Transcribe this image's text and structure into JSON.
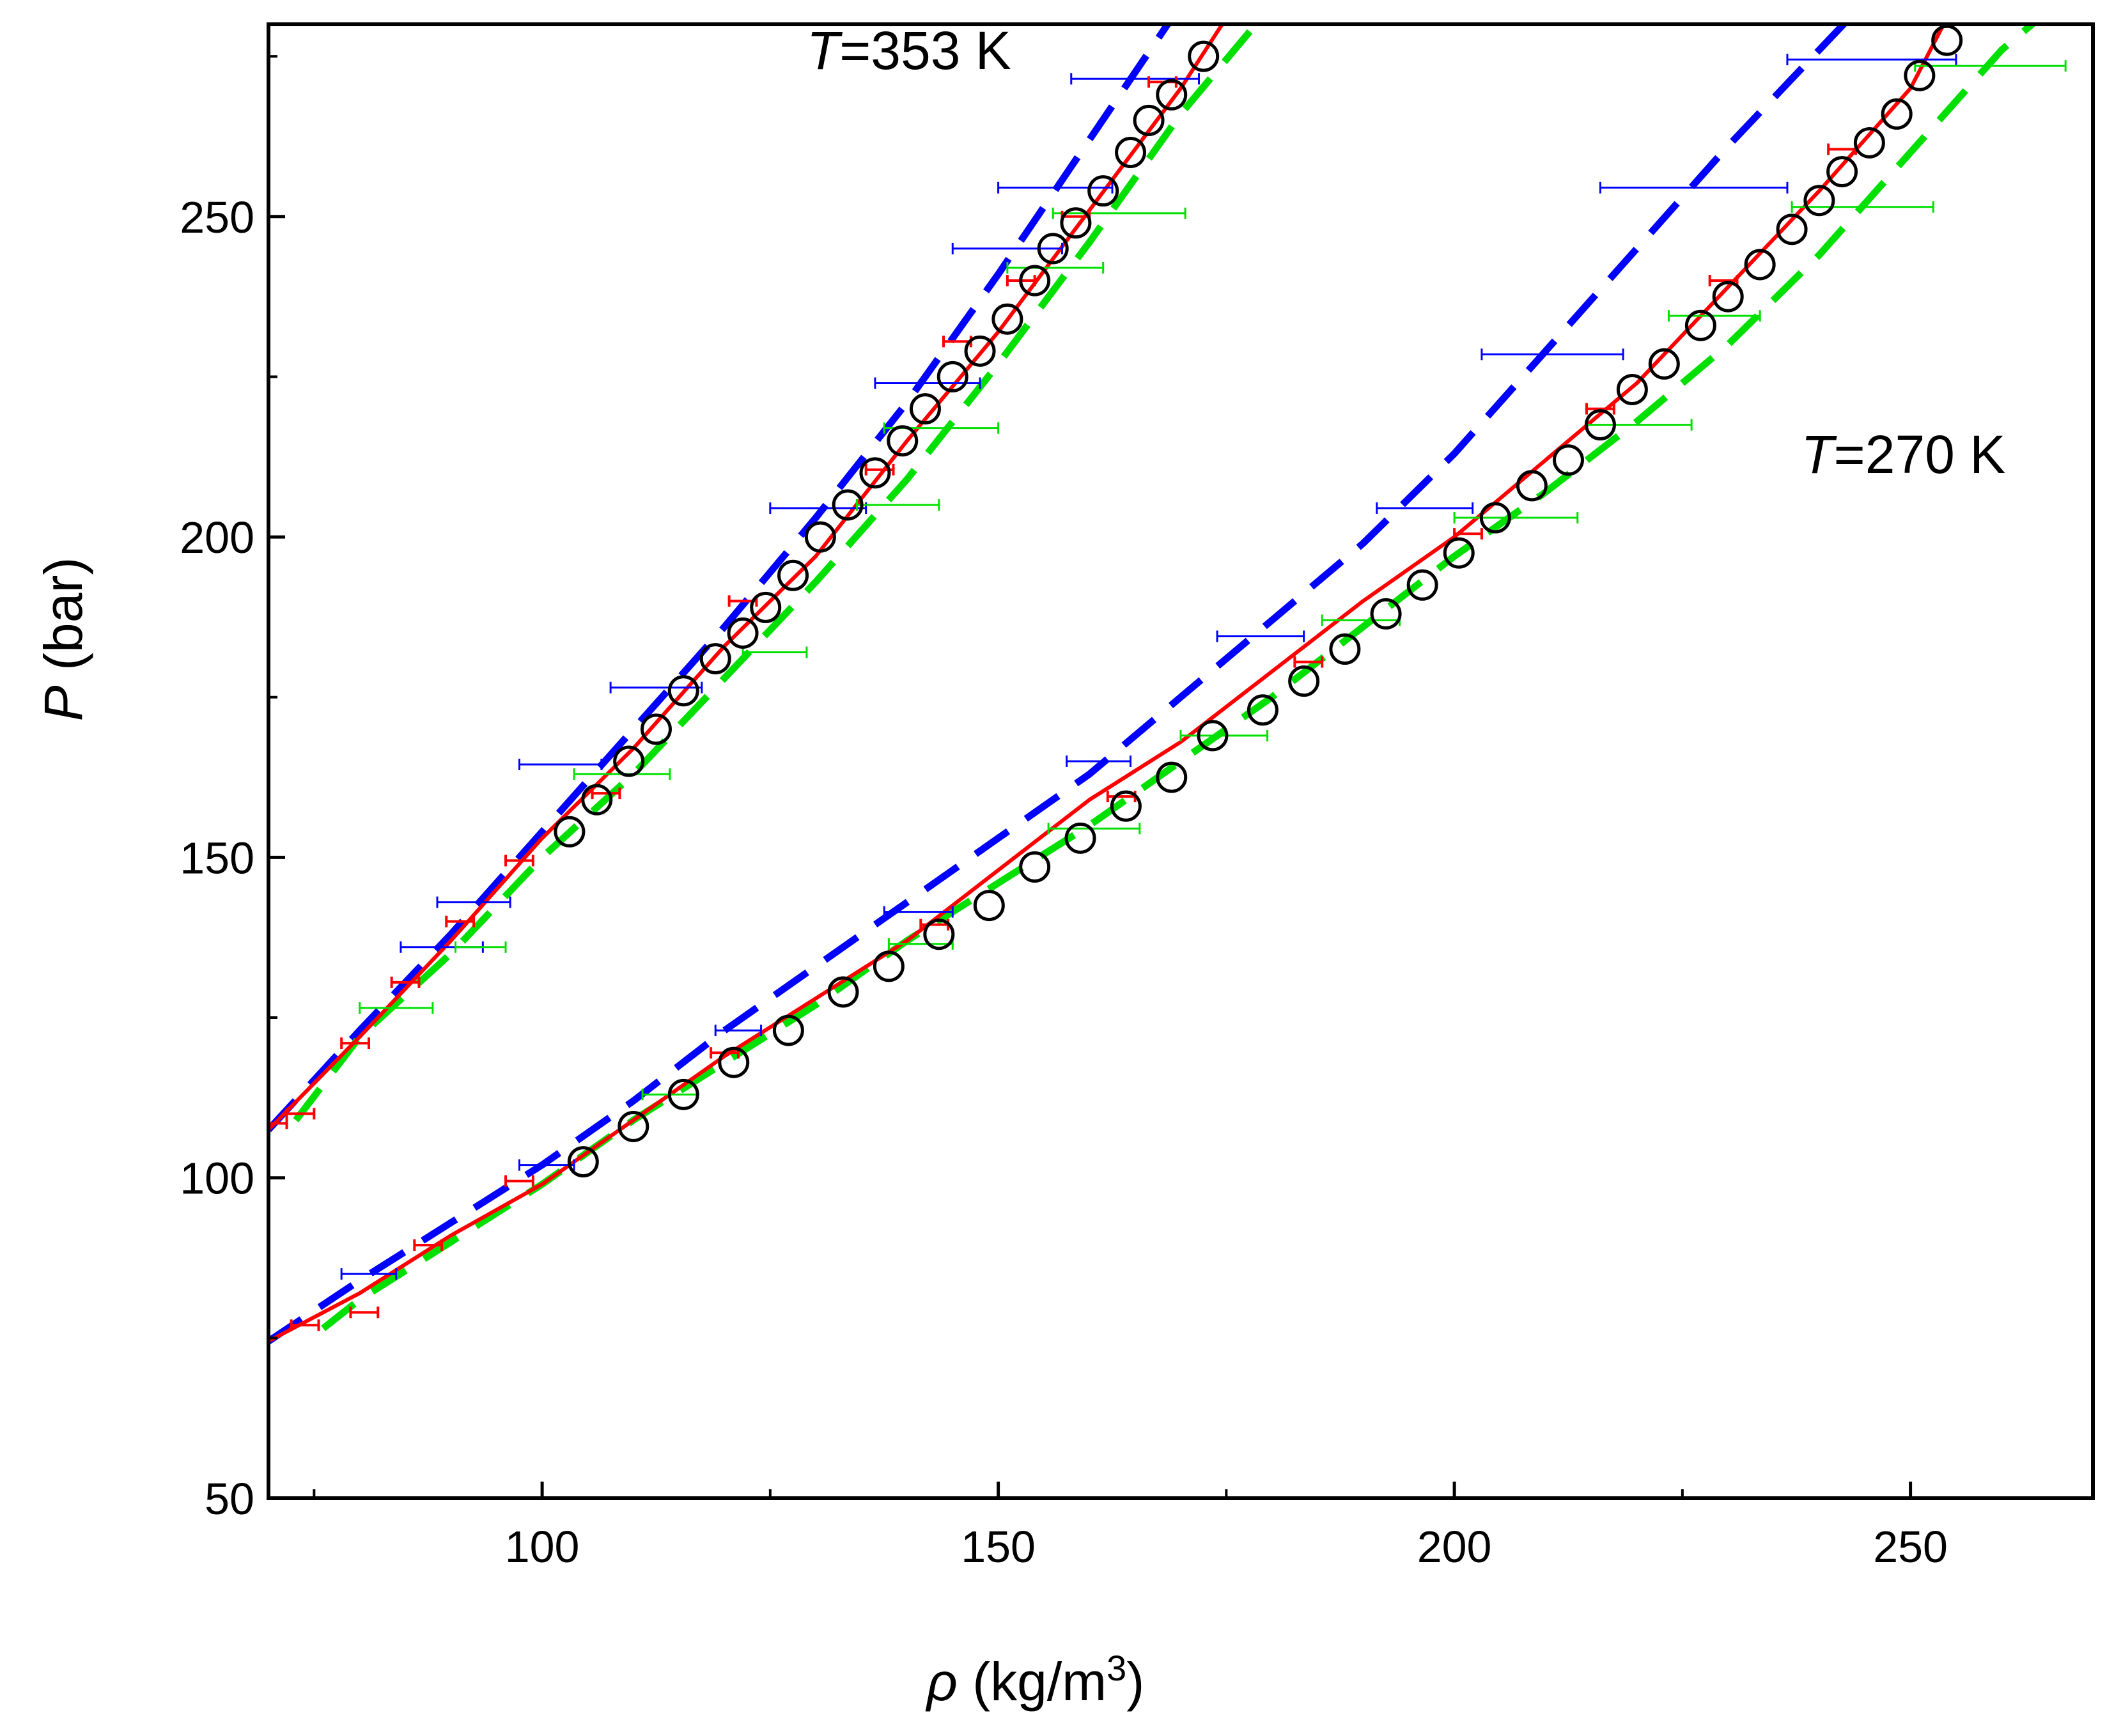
{
  "chart_data": {
    "type": "scatter",
    "xlabel_symbol": "ρ",
    "xlabel_unit": "(kg/m",
    "xlabel_exp": "3",
    "xlabel_close": ")",
    "ylabel_symbol": "P",
    "ylabel_unit": "(bar)",
    "xlim": [
      70,
      270
    ],
    "ylim": [
      50,
      280
    ],
    "xticks": [
      100,
      150,
      200,
      250
    ],
    "xticks_minor": [
      75,
      125,
      175,
      225
    ],
    "yticks": [
      50,
      100,
      150,
      200,
      250
    ],
    "colors": {
      "exp": "#000000",
      "red": "#ff0000",
      "blue": "#0000ff",
      "green": "#00e000"
    },
    "annotations": [
      {
        "italic": "T",
        "rest": "=353 K",
        "at_data": [
          129,
          273
        ]
      },
      {
        "italic": "T",
        "rest": "=270 K",
        "at_data": [
          238,
          210
        ]
      }
    ],
    "series": [
      {
        "name": "T=353 K experimental",
        "kind": "markers",
        "x": [
          103,
          106,
          109.5,
          112.5,
          115.5,
          119,
          122,
          124.5,
          127.5,
          130.5,
          133.5,
          136.5,
          139.5,
          142,
          145,
          148,
          151,
          154,
          156,
          158.5,
          161.5,
          164.5,
          166.5,
          169,
          172.5
        ],
        "y": [
          154,
          159,
          165,
          170,
          176,
          181,
          185,
          189,
          194,
          200,
          205,
          210,
          215,
          220,
          225,
          229,
          234,
          240,
          245,
          249,
          254,
          260,
          265,
          269,
          275
        ]
      },
      {
        "name": "T=270 K experimental",
        "kind": "markers",
        "x": [
          104.5,
          110,
          115.5,
          121,
          127,
          133,
          138,
          143.5,
          149,
          154,
          159,
          164,
          169,
          173.5,
          179,
          183.5,
          188,
          192.5,
          196.5,
          200.5,
          204.5,
          208.5,
          212.5,
          216,
          219.5,
          223,
          227,
          230,
          233.5,
          237,
          240,
          242.5,
          245.5,
          248.5,
          251,
          254
        ],
        "y": [
          102.5,
          108,
          113,
          118,
          123,
          129,
          133,
          138,
          142.5,
          148.5,
          153,
          158,
          162.5,
          169,
          173,
          177.5,
          182.5,
          188,
          192.5,
          197.5,
          203,
          208,
          212,
          217.5,
          223,
          227,
          233,
          237.5,
          242.5,
          248,
          252.5,
          257,
          261.5,
          266,
          272,
          277.5
        ]
      },
      {
        "name": "T=353 K red model",
        "kind": "line",
        "color": "red",
        "x": [
          70,
          80,
          90,
          100,
          110,
          120,
          130,
          140,
          150,
          160,
          170,
          175
        ],
        "y": [
          107.5,
          122,
          137,
          153,
          167,
          183,
          197,
          215,
          232,
          251,
          270,
          281
        ]
      },
      {
        "name": "T=270 K red model",
        "kind": "line",
        "color": "red",
        "x": [
          70,
          80,
          90,
          100,
          110,
          120,
          130,
          140,
          150,
          160,
          170,
          180,
          190,
          200,
          210,
          220,
          230,
          240,
          250,
          254
        ],
        "y": [
          74.5,
          82,
          91,
          99,
          109,
          119,
          128,
          137,
          148,
          159,
          168,
          179,
          190,
          200,
          212,
          224,
          239,
          254,
          270,
          281
        ]
      },
      {
        "name": "T=353 K blue model",
        "kind": "dashed",
        "color": "blue",
        "x": [
          70,
          80,
          90,
          100,
          110,
          120,
          130,
          140,
          150,
          160,
          170
        ],
        "y": [
          107.5,
          123,
          138,
          154,
          170,
          186,
          203,
          221,
          241,
          262,
          283
        ]
      },
      {
        "name": "T=270 K blue model",
        "kind": "dashed",
        "color": "blue",
        "x": [
          70,
          80,
          90,
          100,
          110,
          120,
          130,
          140,
          150,
          160,
          170,
          180,
          190,
          200,
          210,
          220,
          230,
          240,
          246
        ],
        "y": [
          74.5,
          84,
          93,
          102,
          112,
          123,
          133,
          143,
          153,
          163,
          175,
          187,
          199,
          213,
          229,
          245,
          261,
          276,
          285
        ]
      },
      {
        "name": "T=353 K green model",
        "kind": "dashed",
        "color": "green",
        "x": [
          73,
          80,
          90,
          100,
          110,
          120,
          130,
          140,
          150,
          160,
          170,
          180
        ],
        "y": [
          109,
          122,
          135,
          150,
          163,
          178,
          193,
          209,
          227,
          246,
          266,
          283
        ]
      },
      {
        "name": "T=270 K green model",
        "kind": "dashed",
        "color": "green",
        "x": [
          76,
          80,
          90,
          100,
          110,
          120,
          130,
          140,
          150,
          160,
          170,
          180,
          190,
          200,
          210,
          220,
          230,
          240,
          250,
          260,
          265
        ],
        "y": [
          76.5,
          81,
          90,
          99,
          109,
          118,
          127,
          137,
          146,
          155,
          165,
          175,
          186,
          197,
          207,
          218,
          230,
          244,
          260,
          276,
          282
        ]
      },
      {
        "name": "T=353 K blue error bars",
        "kind": "hbars",
        "color": "blue",
        "x": [
          81.5,
          88.5,
          93,
          102,
          113,
          131,
          142.5,
          151.5,
          156.5,
          162.5
        ],
        "y": [
          85,
          136,
          143,
          164.5,
          176.5,
          204.5,
          224,
          245,
          254.5,
          271.5
        ],
        "xlo": [
          78,
          84.5,
          88.5,
          97.5,
          107.5,
          125,
          136.5,
          145,
          150,
          158
        ],
        "xhi": [
          84,
          93.5,
          96.5,
          106.5,
          117.5,
          135.5,
          148,
          157,
          162.5,
          172
        ]
      },
      {
        "name": "T=270 K blue error bars",
        "kind": "hbars",
        "color": "blue",
        "x": [
          101,
          120,
          140,
          160,
          176,
          196,
          211,
          226,
          244
        ],
        "y": [
          102,
          123,
          141.5,
          165,
          184.5,
          204.5,
          228.5,
          254.5,
          274.5
        ],
        "xlo": [
          97.5,
          119,
          137.5,
          157.5,
          174,
          191.5,
          203,
          216,
          236.5
        ],
        "xhi": [
          103.5,
          124,
          145,
          164.5,
          183.5,
          202,
          218.5,
          236.5,
          255
        ]
      },
      {
        "name": "T=353 K green error bars",
        "kind": "hbars",
        "color": "green",
        "x": [
          84,
          92.5,
          111,
          126,
          142,
          155,
          162.5,
          166
        ],
        "y": [
          126.5,
          136,
          163,
          182,
          205,
          217,
          242,
          250.5
        ],
        "xlo": [
          80,
          90.5,
          103.5,
          122,
          134.5,
          137.5,
          151,
          156
        ],
        "xhi": [
          88,
          96,
          114,
          129,
          143.5,
          150,
          161.5,
          170.5
        ]
      },
      {
        "name": "T=270 K green error bars",
        "kind": "hbars",
        "color": "green",
        "x": [
          113,
          141,
          159,
          173,
          191,
          206,
          219,
          231,
          244,
          258
        ],
        "y": [
          113,
          136.5,
          154.5,
          169,
          187,
          203,
          217.5,
          234.5,
          251.5,
          273.5
        ],
        "xlo": [
          111,
          138,
          155.5,
          170,
          185.5,
          200,
          214.5,
          223.5,
          237,
          250.5
        ],
        "xhi": [
          117,
          145,
          165.5,
          179.5,
          194,
          213.5,
          226,
          233.5,
          252.5,
          267
        ]
      },
      {
        "name": "red error bars",
        "kind": "hbars",
        "color": "red",
        "x": [
          71,
          73.5,
          79.5,
          85,
          91,
          97.5,
          107,
          122,
          137,
          145.5,
          152.5,
          158.5,
          168,
          74,
          80.5,
          87.5,
          97.5,
          120,
          143,
          163.5,
          184,
          201.5,
          216,
          229.5,
          242.5
        ],
        "y": [
          108.5,
          110,
          121,
          130.5,
          140,
          149.5,
          160,
          190,
          210.5,
          230.5,
          240,
          250,
          271,
          77,
          79,
          89.5,
          99.5,
          119.5,
          139.5,
          159.5,
          180.5,
          200.5,
          220,
          240,
          260.5
        ],
        "xlo": [
          70,
          72,
          78,
          83.5,
          89.5,
          96,
          105.5,
          120.5,
          135.5,
          144,
          151,
          157,
          166.5,
          72.5,
          79,
          86,
          96,
          118.5,
          141.5,
          162,
          182.5,
          200,
          214.5,
          228,
          241
        ],
        "xhi": [
          72,
          75,
          81,
          86.5,
          92.5,
          99,
          108.5,
          123.5,
          138.5,
          147,
          154,
          160,
          169.5,
          75.5,
          82,
          89,
          99,
          121.5,
          144.5,
          165,
          185.5,
          203,
          217.5,
          231,
          244
        ]
      }
    ]
  }
}
